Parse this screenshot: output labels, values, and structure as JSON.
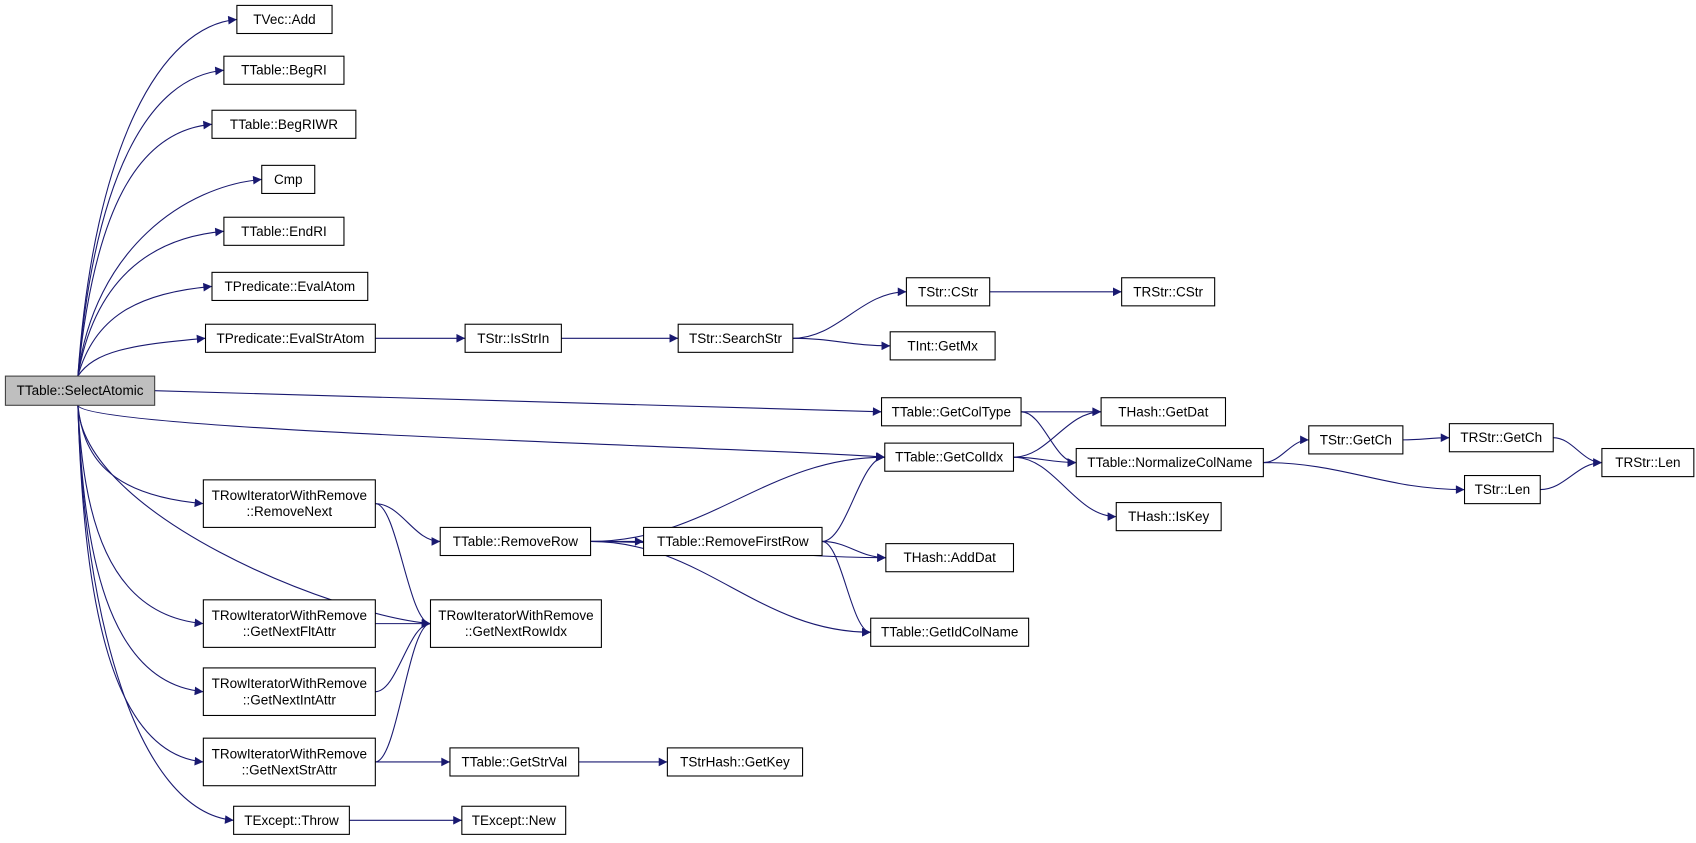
{
  "diagram": {
    "type": "call-graph",
    "root": "TTable::SelectAtomic",
    "colors": {
      "edge": "#191970",
      "root_fill": "#bfbfbf",
      "node_fill": "#ffffff",
      "node_border": "#000000"
    },
    "nodes": [
      {
        "lines": [
          "TTable::SelectAtomic"
        ]
      },
      {
        "lines": [
          "TVec::Add"
        ]
      },
      {
        "lines": [
          "TTable::BegRI"
        ]
      },
      {
        "lines": [
          "TTable::BegRIWR"
        ]
      },
      {
        "lines": [
          "Cmp"
        ]
      },
      {
        "lines": [
          "TTable::EndRI"
        ]
      },
      {
        "lines": [
          "TPredicate::EvalAtom"
        ]
      },
      {
        "lines": [
          "TPredicate::EvalStrAtom"
        ]
      },
      {
        "lines": [
          "TStr::IsStrIn"
        ]
      },
      {
        "lines": [
          "TStr::SearchStr"
        ]
      },
      {
        "lines": [
          "TStr::CStr"
        ]
      },
      {
        "lines": [
          "TRStr::CStr"
        ]
      },
      {
        "lines": [
          "TInt::GetMx"
        ]
      },
      {
        "lines": [
          "TTable::GetColType"
        ]
      },
      {
        "lines": [
          "THash::GetDat"
        ]
      },
      {
        "lines": [
          "TTable::GetColIdx"
        ]
      },
      {
        "lines": [
          "TTable::NormalizeColName"
        ]
      },
      {
        "lines": [
          "TStr::GetCh"
        ]
      },
      {
        "lines": [
          "TRStr::GetCh"
        ]
      },
      {
        "lines": [
          "TRStr::Len"
        ]
      },
      {
        "lines": [
          "TStr::Len"
        ]
      },
      {
        "lines": [
          "THash::IsKey"
        ]
      },
      {
        "lines": [
          "TRowIteratorWithRemove",
          "::RemoveNext"
        ]
      },
      {
        "lines": [
          "TTable::RemoveRow"
        ]
      },
      {
        "lines": [
          "TTable::RemoveFirstRow"
        ]
      },
      {
        "lines": [
          "THash::AddDat"
        ]
      },
      {
        "lines": [
          "TRowIteratorWithRemove",
          "::GetNextRowIdx"
        ]
      },
      {
        "lines": [
          "TTable::GetIdColName"
        ]
      },
      {
        "lines": [
          "TRowIteratorWithRemove",
          "::GetNextFltAttr"
        ]
      },
      {
        "lines": [
          "TRowIteratorWithRemove",
          "::GetNextIntAttr"
        ]
      },
      {
        "lines": [
          "TRowIteratorWithRemove",
          "::GetNextStrAttr"
        ]
      },
      {
        "lines": [
          "TTable::GetStrVal"
        ]
      },
      {
        "lines": [
          "TStrHash::GetKey"
        ]
      },
      {
        "lines": [
          "TExcept::Throw"
        ]
      },
      {
        "lines": [
          "TExcept::New"
        ]
      }
    ],
    "edges": [
      [
        0,
        1
      ],
      [
        0,
        2
      ],
      [
        0,
        3
      ],
      [
        0,
        4
      ],
      [
        0,
        5
      ],
      [
        0,
        6
      ],
      [
        0,
        7
      ],
      [
        0,
        13
      ],
      [
        0,
        15
      ],
      [
        0,
        22
      ],
      [
        0,
        26
      ],
      [
        0,
        28
      ],
      [
        0,
        29
      ],
      [
        0,
        30
      ],
      [
        0,
        33
      ],
      [
        7,
        8
      ],
      [
        8,
        9
      ],
      [
        9,
        10
      ],
      [
        9,
        12
      ],
      [
        10,
        11
      ],
      [
        13,
        14
      ],
      [
        13,
        16
      ],
      [
        15,
        14
      ],
      [
        15,
        16
      ],
      [
        15,
        21
      ],
      [
        16,
        17
      ],
      [
        16,
        20
      ],
      [
        17,
        18
      ],
      [
        18,
        19
      ],
      [
        20,
        19
      ],
      [
        22,
        23
      ],
      [
        22,
        26
      ],
      [
        23,
        15
      ],
      [
        23,
        24
      ],
      [
        23,
        25
      ],
      [
        23,
        27
      ],
      [
        24,
        15
      ],
      [
        24,
        25
      ],
      [
        24,
        27
      ],
      [
        28,
        26
      ],
      [
        29,
        26
      ],
      [
        30,
        26
      ],
      [
        30,
        31
      ],
      [
        31,
        32
      ],
      [
        33,
        34
      ]
    ]
  }
}
